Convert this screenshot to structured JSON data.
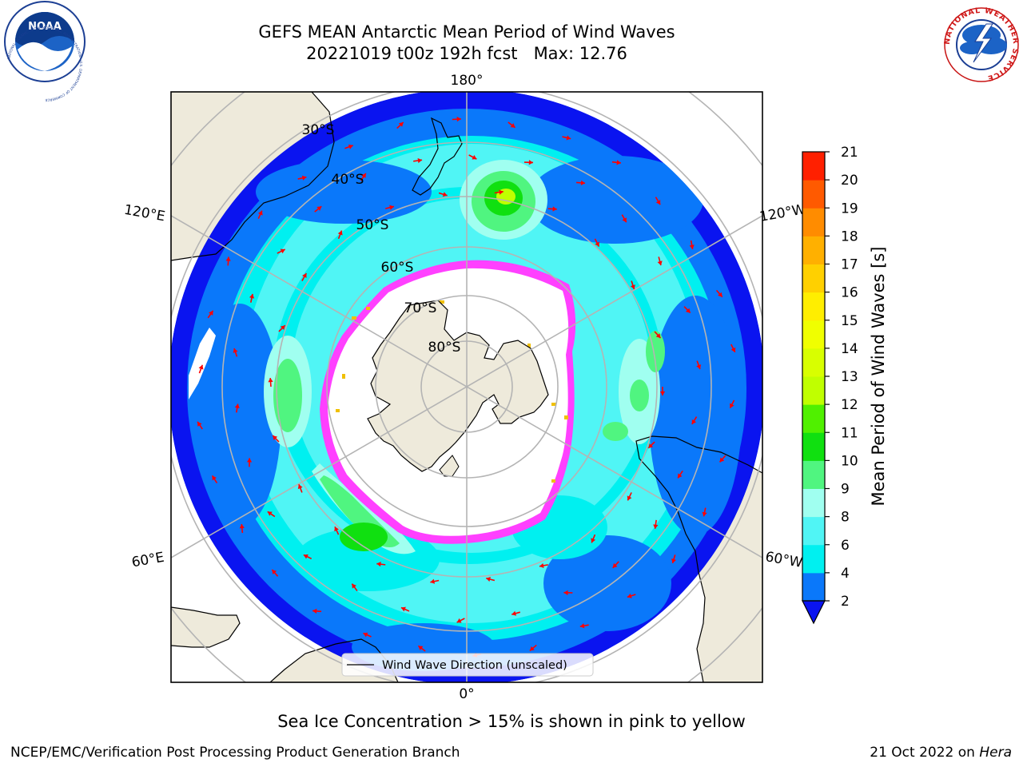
{
  "title": {
    "line1": "GEFS MEAN Antarctic Mean Period of Wind Waves",
    "line2": "20221019 t00z 192h fcst   Max: 12.76"
  },
  "logos": {
    "left": {
      "name": "NOAA",
      "ring_text": "NATIONAL OCEANIC AND ATMOSPHERIC ADMINISTRATION · U.S. DEPARTMENT OF COMMERCE"
    },
    "right": {
      "name": "NATIONAL WEATHER SERVICE"
    }
  },
  "map": {
    "projection": "south polar stereographic",
    "longitude_labels": [
      "180°",
      "120°E",
      "120°W",
      "60°E",
      "60°W",
      "0°"
    ],
    "latitude_labels": [
      "30°S",
      "40°S",
      "50°S",
      "60°S",
      "70°S",
      "80°S"
    ],
    "colors": {
      "land": "#eeeadb",
      "open_ocean": "#0a14f0",
      "ocean_2_4": "#0a78fa",
      "ocean_4_6": "#00f0f0",
      "ocean_6_8": "#50f5f5",
      "ocean_8_9": "#a0fff0",
      "ocean_9_10": "#50f580",
      "ocean_10_11": "#10e010",
      "ocean_12_13": "#c0ff00",
      "sea_ice_pink": "#ff40ff",
      "sea_ice_yellow": "#f0c000",
      "arrows": "#ff0000",
      "grid": "#b4b4b4"
    },
    "legend_label": "Wind Wave Direction (unscaled)"
  },
  "colorbar": {
    "label": "Mean Period of Wind Waves [s]",
    "ticks": [
      "2",
      "4",
      "6",
      "8",
      "9",
      "10",
      "11",
      "12",
      "13",
      "14",
      "15",
      "16",
      "17",
      "18",
      "19",
      "20",
      "21"
    ],
    "levels": [
      2,
      4,
      6,
      8,
      9,
      10,
      11,
      12,
      13,
      14,
      15,
      16,
      17,
      18,
      19,
      20,
      21
    ],
    "band_colors": [
      "#0a78fa",
      "#00f0f0",
      "#50f5f5",
      "#a0fff0",
      "#50f580",
      "#10e010",
      "#50f000",
      "#c0ff00",
      "#d8ff00",
      "#f0ff00",
      "#ffee00",
      "#ffd000",
      "#ffb000",
      "#ff8c00",
      "#ff5a00",
      "#ff2000"
    ],
    "under_color": "#0a14f0"
  },
  "caption": "Sea Ice Concentration > 15% is shown in pink to yellow",
  "footer": {
    "left": "NCEP/EMC/Verification Post Processing Product Generation Branch",
    "date": "21 Oct 2022 on",
    "host": "Hera"
  }
}
